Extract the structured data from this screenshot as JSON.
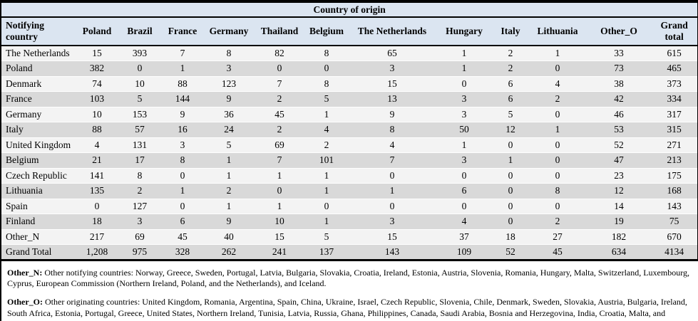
{
  "table": {
    "title": "Country of origin",
    "corner_header": "Notifying country",
    "columns": [
      "Poland",
      "Brazil",
      "France",
      "Germany",
      "Thailand",
      "Belgium",
      "The Netherlands",
      "Hungary",
      "Italy",
      "Lithuania",
      "Other_O",
      "Grand total"
    ],
    "rows": [
      {
        "country": "The Netherlands",
        "values": [
          "15",
          "393",
          "7",
          "8",
          "82",
          "8",
          "65",
          "1",
          "2",
          "1",
          "33",
          "615"
        ]
      },
      {
        "country": "Poland",
        "values": [
          "382",
          "0",
          "1",
          "3",
          "0",
          "0",
          "3",
          "1",
          "2",
          "0",
          "73",
          "465"
        ]
      },
      {
        "country": "Denmark",
        "values": [
          "74",
          "10",
          "88",
          "123",
          "7",
          "8",
          "15",
          "0",
          "6",
          "4",
          "38",
          "373"
        ]
      },
      {
        "country": "France",
        "values": [
          "103",
          "5",
          "144",
          "9",
          "2",
          "5",
          "13",
          "3",
          "6",
          "2",
          "42",
          "334"
        ]
      },
      {
        "country": "Germany",
        "values": [
          "10",
          "153",
          "9",
          "36",
          "45",
          "1",
          "9",
          "3",
          "5",
          "0",
          "46",
          "317"
        ]
      },
      {
        "country": "Italy",
        "values": [
          "88",
          "57",
          "16",
          "24",
          "2",
          "4",
          "8",
          "50",
          "12",
          "1",
          "53",
          "315"
        ]
      },
      {
        "country": "United Kingdom",
        "values": [
          "4",
          "131",
          "3",
          "5",
          "69",
          "2",
          "4",
          "1",
          "0",
          "0",
          "52",
          "271"
        ]
      },
      {
        "country": "Belgium",
        "values": [
          "21",
          "17",
          "8",
          "1",
          "7",
          "101",
          "7",
          "3",
          "1",
          "0",
          "47",
          "213"
        ]
      },
      {
        "country": "Czech Republic",
        "values": [
          "141",
          "8",
          "0",
          "1",
          "1",
          "1",
          "0",
          "0",
          "0",
          "0",
          "23",
          "175"
        ]
      },
      {
        "country": "Lithuania",
        "values": [
          "135",
          "2",
          "1",
          "2",
          "0",
          "1",
          "1",
          "6",
          "0",
          "8",
          "12",
          "168"
        ]
      },
      {
        "country": "Spain",
        "values": [
          "0",
          "127",
          "0",
          "1",
          "1",
          "0",
          "0",
          "0",
          "0",
          "0",
          "14",
          "143"
        ]
      },
      {
        "country": "Finland",
        "values": [
          "18",
          "3",
          "6",
          "9",
          "10",
          "1",
          "3",
          "4",
          "0",
          "2",
          "19",
          "75"
        ]
      },
      {
        "country": "Other_N",
        "values": [
          "217",
          "69",
          "45",
          "40",
          "15",
          "5",
          "15",
          "37",
          "18",
          "27",
          "182",
          "670"
        ]
      },
      {
        "country": "Grand Total",
        "values": [
          "1,208",
          "975",
          "328",
          "262",
          "241",
          "137",
          "143",
          "109",
          "52",
          "45",
          "634",
          "4134"
        ]
      }
    ],
    "colors": {
      "header_background": "#dbe5f1",
      "row_light": "#f3f3f3",
      "row_shaded": "#d9d9d9",
      "border": "#000000"
    },
    "footnotes": [
      {
        "label": "Other_N:",
        "text": " Other notifying countries: Norway, Greece, Sweden, Portugal, Latvia, Bulgaria, Slovakia, Croatia, Ireland, Estonia, Austria, Slovenia, Romania, Hungary, Malta, Switzerland, Luxembourg, Cyprus, European Commission (Northern Ireland, Poland, and the Netherlands), and Iceland."
      },
      {
        "label": "Other_O:",
        "text": " Other originating countries: United Kingdom, Romania, Argentina, Spain, China, Ukraine, Israel, Czech Republic, Slovenia, Chile, Denmark, Sweden, Slovakia, Austria, Bulgaria, Ireland, South Africa, Estonia, Portugal, Greece, United States, Northern Ireland, Tunisia, Latvia, Russia, Ghana, Philippines, Canada, Saudi Arabia, Bosnia and Herzegovina, India, Croatia, Malta, and Turkey."
      }
    ]
  }
}
